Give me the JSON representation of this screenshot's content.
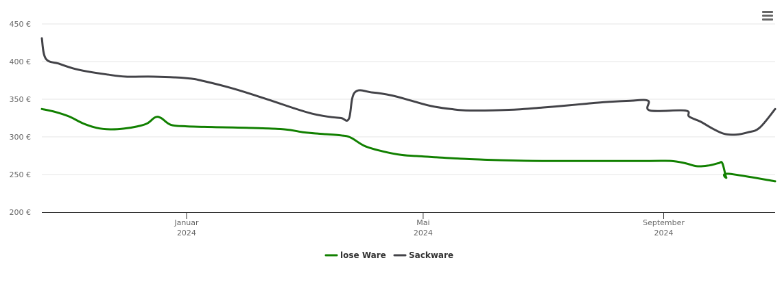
{
  "toolbar": {
    "menu_icon": "hamburger-menu-icon",
    "menu_color": "#666666"
  },
  "chart_data": {
    "type": "line",
    "title": "",
    "xlabel": "",
    "ylabel": "",
    "ylim": [
      200,
      450
    ],
    "y_ticks": [
      200,
      250,
      300,
      350,
      400,
      450
    ],
    "y_tick_labels": [
      "200 €",
      "250 €",
      "300 €",
      "350 €",
      "400 €",
      "450 €"
    ],
    "xlim": [
      "2023-10-19",
      "2024-10-28"
    ],
    "x_ticks": [
      {
        "date": "2024-01-01",
        "month": "Januar",
        "year": "2024"
      },
      {
        "date": "2024-05-01",
        "month": "Mai",
        "year": "2024"
      },
      {
        "date": "2024-09-01",
        "month": "September",
        "year": "2024"
      }
    ],
    "grid": true,
    "legend_position": "bottom-center",
    "series": [
      {
        "name": "lose Ware",
        "color": "#118000",
        "points": [
          [
            "2023-10-19",
            337
          ],
          [
            "2023-10-26",
            333
          ],
          [
            "2023-11-02",
            327
          ],
          [
            "2023-11-09",
            318
          ],
          [
            "2023-11-16",
            312
          ],
          [
            "2023-11-23",
            310
          ],
          [
            "2023-11-30",
            311
          ],
          [
            "2023-12-07",
            314
          ],
          [
            "2023-12-12",
            318
          ],
          [
            "2023-12-16",
            326
          ],
          [
            "2023-12-19",
            325
          ],
          [
            "2023-12-24",
            316
          ],
          [
            "2024-01-01",
            314
          ],
          [
            "2024-01-15",
            313
          ],
          [
            "2024-02-01",
            312
          ],
          [
            "2024-02-20",
            310
          ],
          [
            "2024-03-01",
            306
          ],
          [
            "2024-03-10",
            304
          ],
          [
            "2024-03-20",
            302
          ],
          [
            "2024-03-25",
            299
          ],
          [
            "2024-04-01",
            288
          ],
          [
            "2024-04-10",
            281
          ],
          [
            "2024-04-20",
            276
          ],
          [
            "2024-05-01",
            274
          ],
          [
            "2024-05-20",
            271
          ],
          [
            "2024-06-10",
            269
          ],
          [
            "2024-07-01",
            268
          ],
          [
            "2024-08-01",
            268
          ],
          [
            "2024-08-25",
            268
          ],
          [
            "2024-09-05",
            268
          ],
          [
            "2024-09-12",
            265
          ],
          [
            "2024-09-18",
            261
          ],
          [
            "2024-09-24",
            262
          ],
          [
            "2024-09-29",
            265
          ],
          [
            "2024-10-01",
            265
          ],
          [
            "2024-10-03",
            246
          ],
          [
            "2024-10-04",
            251
          ],
          [
            "2024-10-28",
            241
          ]
        ]
      },
      {
        "name": "Sackware",
        "color": "#434348",
        "points": [
          [
            "2023-10-19",
            431
          ],
          [
            "2023-10-21",
            404
          ],
          [
            "2023-10-28",
            397
          ],
          [
            "2023-11-04",
            391
          ],
          [
            "2023-11-11",
            387
          ],
          [
            "2023-11-21",
            383
          ],
          [
            "2023-12-01",
            380
          ],
          [
            "2023-12-15",
            380
          ],
          [
            "2024-01-01",
            378
          ],
          [
            "2024-01-10",
            374
          ],
          [
            "2024-01-25",
            364
          ],
          [
            "2024-02-10",
            351
          ],
          [
            "2024-02-25",
            338
          ],
          [
            "2024-03-05",
            331
          ],
          [
            "2024-03-13",
            327
          ],
          [
            "2024-03-20",
            325
          ],
          [
            "2024-03-24",
            324
          ],
          [
            "2024-03-27",
            359
          ],
          [
            "2024-04-05",
            359
          ],
          [
            "2024-04-15",
            355
          ],
          [
            "2024-04-25",
            348
          ],
          [
            "2024-05-05",
            341
          ],
          [
            "2024-05-15",
            337
          ],
          [
            "2024-05-25",
            335
          ],
          [
            "2024-06-15",
            336
          ],
          [
            "2024-07-01",
            339
          ],
          [
            "2024-07-15",
            342
          ],
          [
            "2024-08-01",
            346
          ],
          [
            "2024-08-15",
            348
          ],
          [
            "2024-08-24",
            348
          ],
          [
            "2024-08-25",
            335
          ],
          [
            "2024-09-12",
            335
          ],
          [
            "2024-09-14",
            327
          ],
          [
            "2024-09-20",
            320
          ],
          [
            "2024-09-26",
            311
          ],
          [
            "2024-10-02",
            304
          ],
          [
            "2024-10-08",
            303
          ],
          [
            "2024-10-14",
            306
          ],
          [
            "2024-10-20",
            312
          ],
          [
            "2024-10-28",
            337
          ]
        ]
      }
    ]
  }
}
